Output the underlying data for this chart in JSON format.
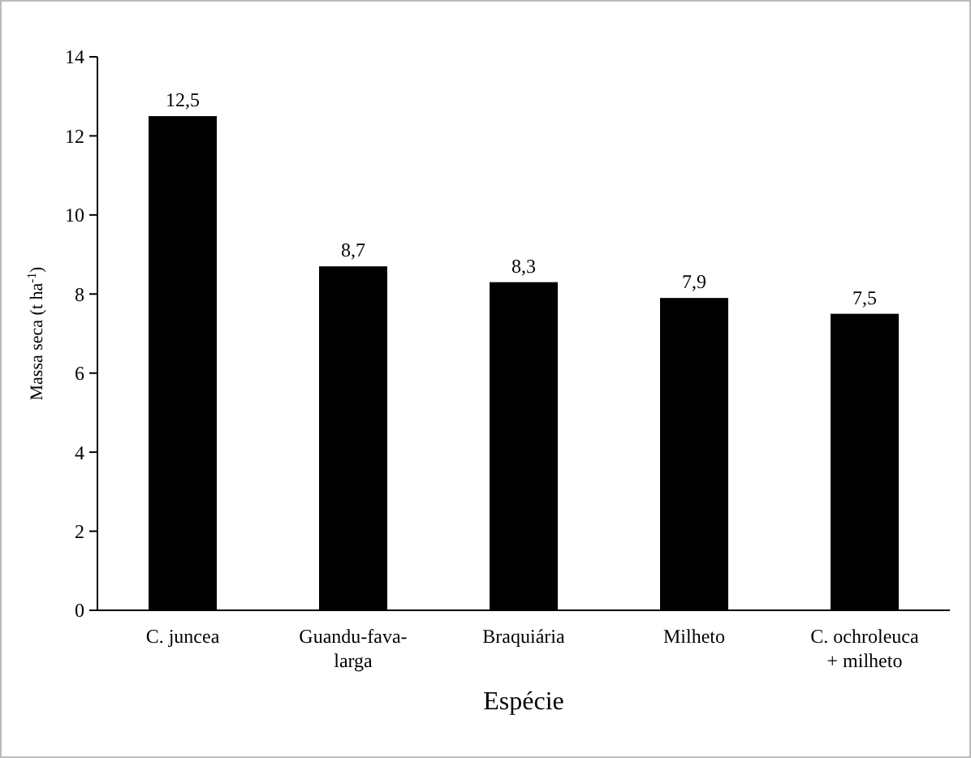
{
  "chart_data": {
    "type": "bar",
    "xlabel": "Espécie",
    "ylabel": "Massa seca (t ha$^{-1}$)",
    "categories": [
      "C. juncea",
      "Guandu-fava-larga",
      "Braquiária",
      "Milheto",
      "C. ochroleuca + milheto"
    ],
    "values": [
      12.5,
      8.7,
      8.3,
      7.9,
      7.5
    ],
    "value_labels": [
      "12,5",
      "8,7",
      "8,3",
      "7,9",
      "7,5"
    ],
    "color": "#000000",
    "ylim": [
      0,
      14
    ],
    "yticks": [
      0,
      2,
      4,
      6,
      8,
      10,
      12,
      14
    ],
    "grid": false
  }
}
